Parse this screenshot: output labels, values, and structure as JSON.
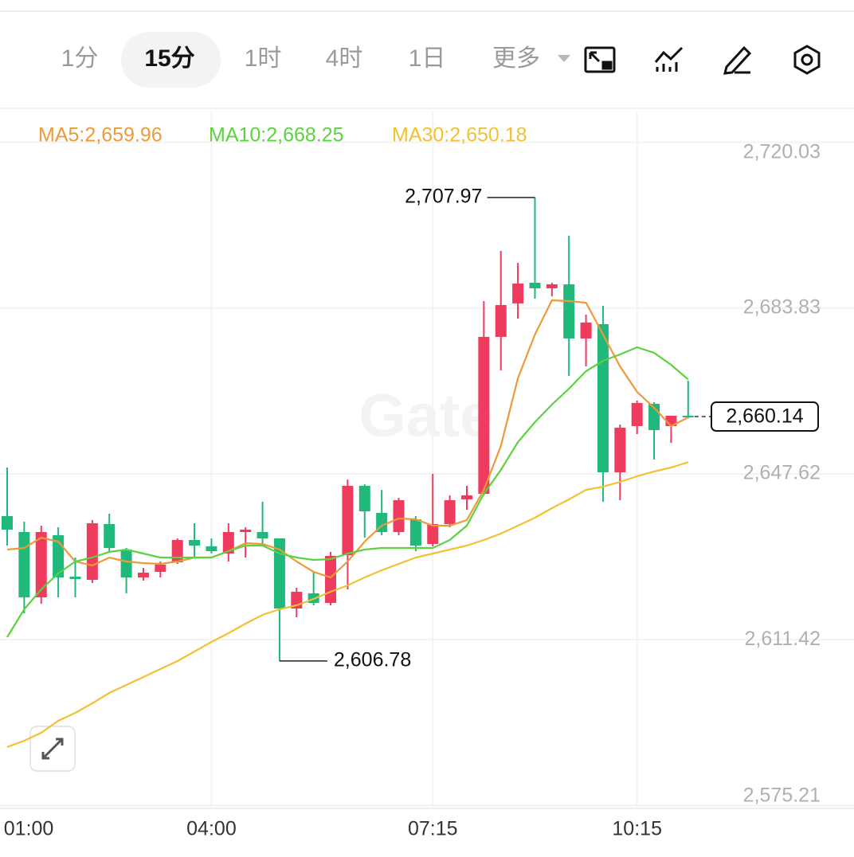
{
  "tabs": [
    "1分",
    "15分",
    "1时",
    "4时",
    "1日",
    "更多"
  ],
  "selected_tab": 1,
  "chart_data": {
    "type": "candlestick",
    "categories": [
      "01:00",
      null,
      null,
      null,
      null,
      null,
      null,
      null,
      null,
      null,
      null,
      null,
      "04:00",
      null,
      null,
      null,
      null,
      null,
      null,
      null,
      null,
      null,
      null,
      null,
      null,
      "07:15",
      null,
      null,
      null,
      null,
      null,
      null,
      null,
      null,
      null,
      null,
      null,
      "10:15",
      null,
      null,
      null
    ],
    "open": [
      2638.4,
      2634.93,
      2620.67,
      2634.23,
      2625.19,
      2624.49,
      2636.67,
      2631.1,
      2625.01,
      2626.23,
      2628.32,
      2633.19,
      2631.8,
      2630.23,
      2634.93,
      2634.93,
      2633.54,
      2618.23,
      2621.54,
      2619.45,
      2629.88,
      2645.01,
      2639.1,
      2634.93,
      2637.71,
      2632.32,
      2636.67,
      2642.06,
      2643.27,
      2677.54,
      2684.84,
      2689.36,
      2688.14,
      2689.01,
      2677.19,
      2680.32,
      2647.97,
      2658.06,
      2662.93,
      2658.06,
      2660.32
    ],
    "high": [
      2649.01,
      2637.19,
      2636.32,
      2635.97,
      2629.36,
      2637.54,
      2638.93,
      2631.45,
      2627.1,
      2628.49,
      2633.54,
      2636.84,
      2633.54,
      2636.84,
      2635.97,
      2641.54,
      2633.54,
      2622.75,
      2626.23,
      2630.58,
      2646.41,
      2645.36,
      2644.14,
      2642.4,
      2638.4,
      2647.62,
      2642.93,
      2645.01,
      2685.36,
      2696.32,
      2693.71,
      2707.97,
      2689.36,
      2699.62,
      2682.41,
      2684.32,
      2658.41,
      2663.62,
      2663.27,
      2660.32,
      2667.97
    ],
    "low": [
      2631.97,
      2617.19,
      2619.27,
      2620.67,
      2620.67,
      2623.8,
      2630.75,
      2621.54,
      2624.32,
      2625.01,
      2627.97,
      2629.36,
      2630.23,
      2628.49,
      2629.36,
      2631.97,
      2606.78,
      2616.32,
      2618.93,
      2618.93,
      2622.4,
      2633.71,
      2634.23,
      2634.23,
      2630.75,
      2631.8,
      2635.97,
      2639.8,
      2642.93,
      2670.23,
      2681.54,
      2685.88,
      2686.4,
      2669.01,
      2671.1,
      2641.54,
      2641.88,
      2656.32,
      2650.75,
      2654.41,
      2659.8
    ],
    "close": [
      2635.45,
      2620.67,
      2634.93,
      2625.01,
      2624.67,
      2636.84,
      2631.45,
      2625.01,
      2626.06,
      2627.8,
      2633.19,
      2631.97,
      2630.75,
      2634.93,
      2635.45,
      2633.54,
      2618.23,
      2621.88,
      2619.45,
      2629.71,
      2645.01,
      2639.45,
      2634.93,
      2641.88,
      2631.97,
      2636.67,
      2641.88,
      2642.93,
      2677.54,
      2684.49,
      2689.19,
      2688.14,
      2689.01,
      2677.19,
      2680.67,
      2647.97,
      2657.71,
      2663.1,
      2657.19,
      2660.32,
      2660.14
    ],
    "up_color": "#ee3b5e",
    "down_color": "#21b87c",
    "series": [
      {
        "name": "MA5:2,659.96",
        "color": "#ec9a3a",
        "values": [
          2631.1,
          2631.45,
          2633.71,
          2632.84,
          2628.49,
          2627.62,
          2629.36,
          2628.49,
          2628.14,
          2627.97,
          2628.49,
          2629.36,
          2629.36,
          2630.75,
          2632.49,
          2632.32,
          2631.1,
          2628.49,
          2626.23,
          2625.01,
          2628.49,
          2632.84,
          2636.32,
          2637.88,
          2637.71,
          2636.32,
          2636.32,
          2637.54,
          2644.14,
          2653.71,
          2668.49,
          2678.06,
          2685.54,
          2685.36,
          2685.01,
          2678.06,
          2671.1,
          2665.54,
          2662.06,
          2658.06,
          2659.96
        ]
      },
      {
        "name": "MA10:2,668.25",
        "color": "#5bd23f",
        "values": [
          2611.97,
          2618.06,
          2622.4,
          2625.88,
          2628.49,
          2629.36,
          2630.58,
          2631.1,
          2630.23,
          2629.36,
          2629.36,
          2629.36,
          2629.36,
          2630.75,
          2631.97,
          2631.97,
          2630.23,
          2629.36,
          2628.84,
          2629.01,
          2630.23,
          2631.1,
          2631.45,
          2631.45,
          2631.45,
          2631.45,
          2633.19,
          2636.32,
          2643.27,
          2648.49,
          2654.58,
          2658.93,
          2662.75,
          2666.23,
          2670.06,
          2672.32,
          2673.71,
          2675.27,
          2674.06,
          2671.45,
          2668.25
        ]
      },
      {
        "name": "MA30:2,650.18",
        "color": "#f2c133",
        "values": [
          2587.97,
          2589.36,
          2591.1,
          2593.71,
          2595.45,
          2597.54,
          2599.8,
          2601.54,
          2603.28,
          2605.01,
          2606.75,
          2608.84,
          2610.93,
          2612.84,
          2614.93,
          2616.84,
          2618.06,
          2618.93,
          2620.32,
          2621.88,
          2623.27,
          2625.01,
          2626.58,
          2627.97,
          2629.36,
          2630.23,
          2631.1,
          2631.97,
          2633.19,
          2634.58,
          2636.32,
          2638.06,
          2640.15,
          2642.06,
          2644.14,
          2644.84,
          2645.88,
          2647.1,
          2648.14,
          2649.01,
          2650.18
        ]
      }
    ],
    "ylim": [
      2574.58,
      2726.75
    ],
    "yticks": [
      {
        "value": 2720.03,
        "label": "2,720.03"
      },
      {
        "value": 2683.83,
        "label": "2,683.83"
      },
      {
        "value": 2647.62,
        "label": "2,647.62"
      },
      {
        "value": 2611.42,
        "label": "2,611.42"
      },
      {
        "value": 2575.21,
        "label": "2,575.21"
      }
    ],
    "annotations": {
      "high_label": "2,707.97",
      "low_label": "2,606.78",
      "last_label": "2,660.14"
    },
    "watermark": "Gate",
    "grid": true
  }
}
